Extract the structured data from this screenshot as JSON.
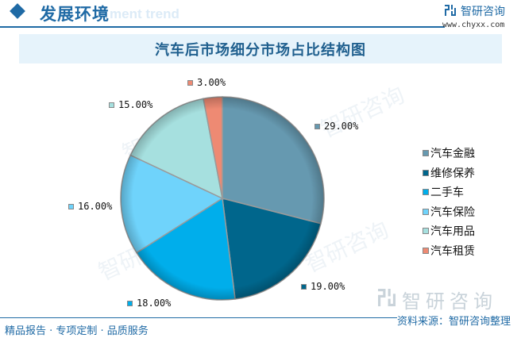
{
  "header": {
    "title": "发展环境",
    "ghost_text": "ment trend",
    "icon": "diamond-icon"
  },
  "brand": {
    "name": "智研咨询",
    "url": "www.chyxx.com",
    "icon": "chyxx-logo-icon"
  },
  "watermark": {
    "text": "智研咨询"
  },
  "chart_data": {
    "type": "pie",
    "title": "汽车后市场细分市场占比结构图",
    "categories": [
      "汽车金融",
      "维修保养",
      "二手车",
      "汽车保险",
      "汽车用品",
      "汽车租赁"
    ],
    "values": [
      29,
      19,
      18,
      16,
      15,
      3
    ],
    "labels": [
      "29.00%",
      "19.00%",
      "18.00%",
      "16.00%",
      "15.00%",
      "3.00%"
    ],
    "colors": [
      "#6699b0",
      "#00668c",
      "#00aeeb",
      "#6fd3fb",
      "#a6e0df",
      "#ee8a73"
    ],
    "start_angle": "12 o'clock, clockwise",
    "legend_position": "right"
  },
  "footer": {
    "left": "精品报告 · 专项定制 · 品质服务",
    "right": "资料来源：智研咨询整理"
  }
}
